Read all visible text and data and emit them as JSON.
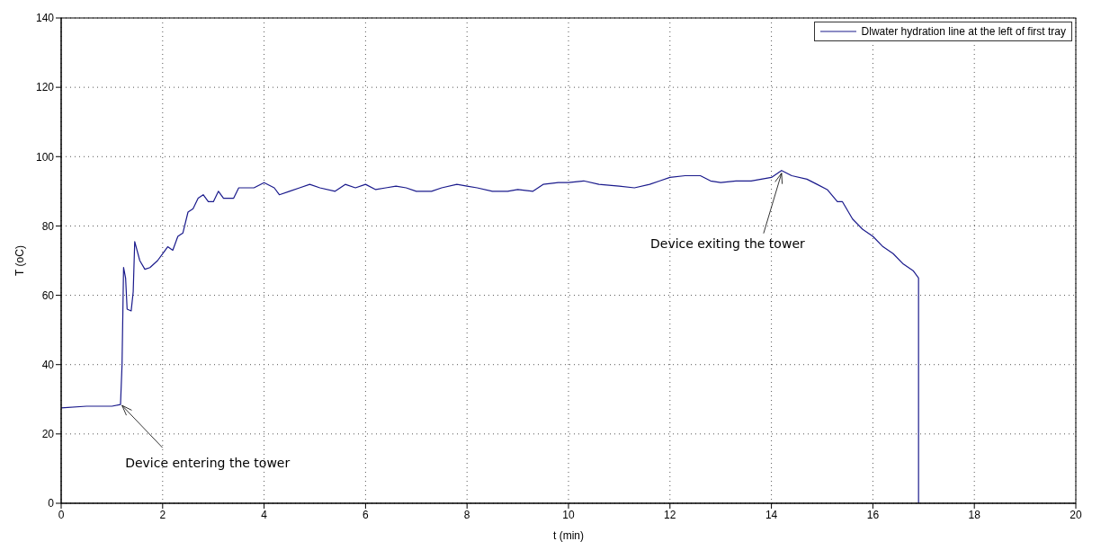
{
  "chart_data": {
    "type": "line",
    "xlabel": "t (min)",
    "ylabel": "T (oC)",
    "xlim": [
      0,
      20
    ],
    "xticks": [
      0,
      2,
      4,
      6,
      8,
      10,
      12,
      14,
      16,
      18,
      20
    ],
    "ylim": [
      0,
      140
    ],
    "yticks": [
      0,
      20,
      40,
      60,
      80,
      100,
      120,
      140
    ],
    "grid": true,
    "legend": "top right",
    "marker": "none",
    "line_style": "solid",
    "annotations": [
      {
        "text": "Device entering the tower",
        "x": 1.2,
        "y": 29
      },
      {
        "text": "Device exiting the tower",
        "x": 14.2,
        "y": 96
      }
    ],
    "series": [
      {
        "name": "Dlwater hydration line at the left of first tray",
        "color": "#1a1a8c",
        "x": [
          0,
          0.5,
          1.0,
          1.17,
          1.2,
          1.23,
          1.27,
          1.3,
          1.38,
          1.42,
          1.45,
          1.55,
          1.65,
          1.75,
          1.9,
          2.0,
          2.1,
          2.2,
          2.3,
          2.4,
          2.5,
          2.6,
          2.7,
          2.8,
          2.9,
          3.0,
          3.1,
          3.2,
          3.4,
          3.5,
          3.8,
          4.0,
          4.2,
          4.3,
          4.5,
          4.7,
          4.9,
          5.1,
          5.4,
          5.6,
          5.8,
          6.0,
          6.2,
          6.4,
          6.6,
          6.8,
          7.0,
          7.3,
          7.5,
          7.8,
          8.0,
          8.2,
          8.5,
          8.8,
          9.0,
          9.3,
          9.5,
          9.8,
          10.0,
          10.3,
          10.6,
          11.0,
          11.3,
          11.6,
          11.8,
          12.0,
          12.3,
          12.6,
          12.8,
          13.0,
          13.3,
          13.6,
          14.0,
          14.2,
          14.4,
          14.7,
          14.9,
          15.1,
          15.3,
          15.4,
          15.6,
          15.8,
          16.0,
          16.2,
          16.4,
          16.6,
          16.8,
          16.9,
          16.9
        ],
        "values": [
          27.5,
          28,
          28,
          28.5,
          40,
          68,
          65,
          56,
          55.5,
          61,
          75.5,
          70,
          67.5,
          68,
          70,
          72,
          74,
          73,
          77,
          78,
          84,
          85,
          88,
          89,
          87,
          87,
          90,
          88,
          88,
          91,
          91,
          92.5,
          91,
          89,
          90,
          91,
          92,
          91,
          90,
          92,
          91,
          92,
          90.5,
          91,
          91.5,
          91,
          90,
          90,
          91,
          92,
          91.5,
          91,
          90,
          90,
          90.5,
          90,
          92,
          92.5,
          92.5,
          93,
          92,
          91.5,
          91,
          92,
          93,
          94,
          94.5,
          94.5,
          93,
          92.5,
          93,
          93,
          94,
          96,
          94.5,
          93.5,
          92,
          90.5,
          87,
          87,
          82,
          79,
          77,
          74,
          72,
          69,
          67,
          65,
          0
        ]
      }
    ]
  }
}
